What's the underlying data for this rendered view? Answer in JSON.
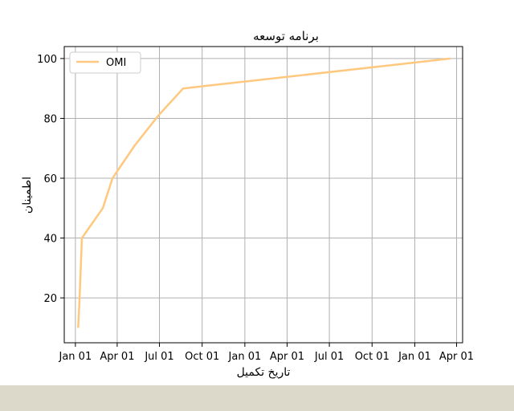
{
  "chart_data": {
    "type": "line",
    "title": "برنامه توسعه",
    "xlabel": "تاریخ تکمیل",
    "ylabel": "اطمینان",
    "x_ticks": [
      "Jan 01",
      "Apr 01",
      "Jul 01",
      "Oct 01",
      "Jan 01",
      "Apr 01",
      "Jul 01",
      "Oct 01",
      "Jan 01",
      "Apr 01"
    ],
    "x_tick_dates": [
      "2023-01-01",
      "2023-04-01",
      "2023-07-01",
      "2023-10-01",
      "2024-01-01",
      "2024-04-01",
      "2024-07-01",
      "2024-10-01",
      "2025-01-01",
      "2025-04-01"
    ],
    "xlim": [
      "2022-12-08",
      "2025-04-14"
    ],
    "ylim": [
      5,
      104
    ],
    "y_ticks": [
      20,
      40,
      60,
      80,
      100
    ],
    "grid": true,
    "legend_position": "top-left",
    "series": [
      {
        "name": "OMI",
        "color": "#ffc87f",
        "points": [
          {
            "x": "2023-01-07",
            "y": 10
          },
          {
            "x": "2023-01-10",
            "y": 20
          },
          {
            "x": "2023-01-15",
            "y": 40
          },
          {
            "x": "2023-03-01",
            "y": 50
          },
          {
            "x": "2023-03-22",
            "y": 60
          },
          {
            "x": "2023-05-09",
            "y": 71
          },
          {
            "x": "2023-06-29",
            "y": 81
          },
          {
            "x": "2023-08-21",
            "y": 90
          },
          {
            "x": "2025-03-19",
            "y": 100
          }
        ]
      }
    ]
  }
}
